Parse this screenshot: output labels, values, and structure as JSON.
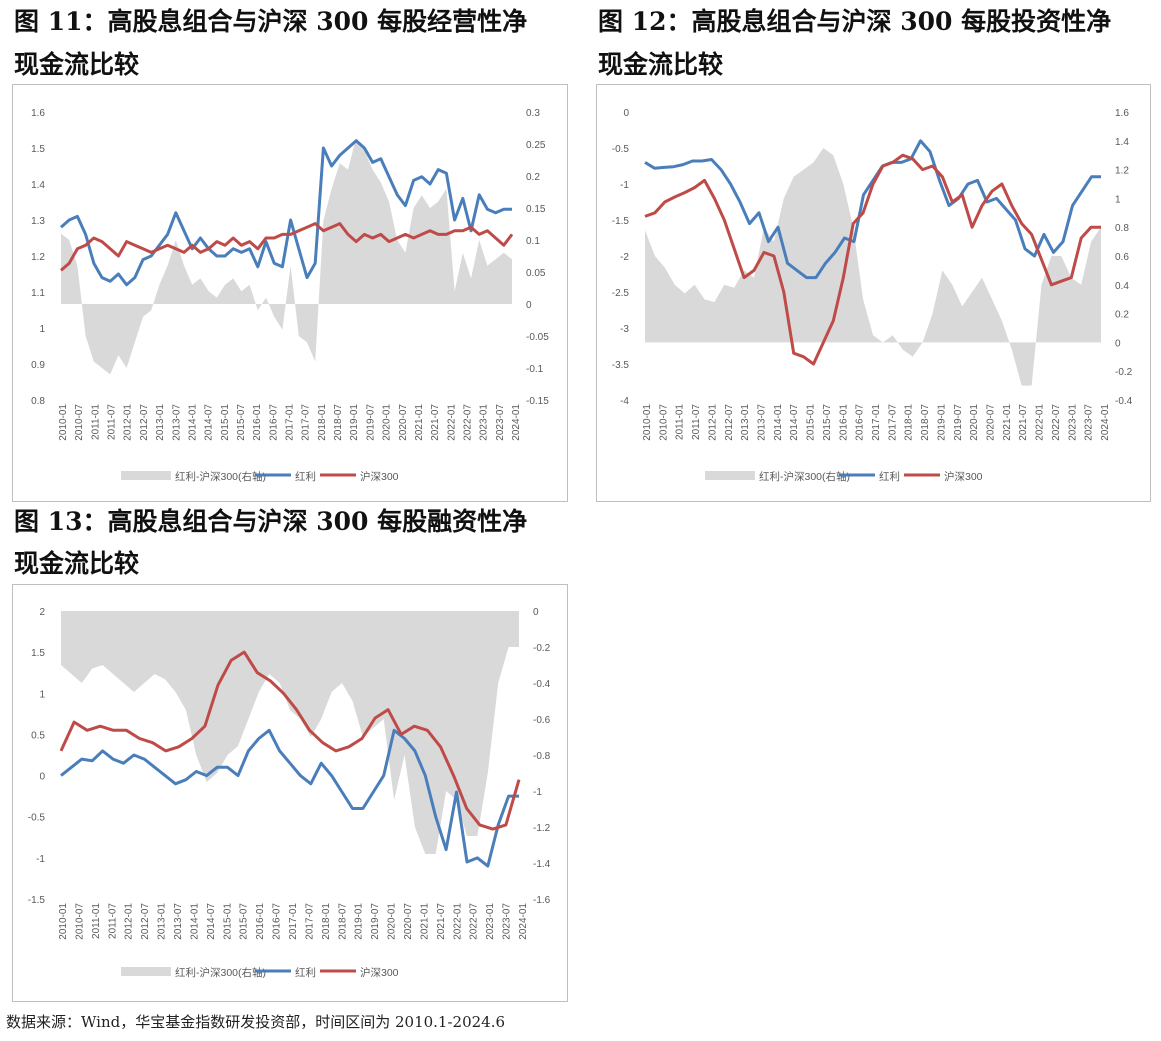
{
  "captions": {
    "fig11": [
      "图 11：高股息组合与沪深 300 每股经营性净",
      "现金流比较"
    ],
    "fig12": [
      "图 12：高股息组合与沪深 300 每股投资性净",
      "现金流比较"
    ],
    "fig13": [
      "图 13：高股息组合与沪深 300 每股融资性净",
      "现金流比较"
    ]
  },
  "source": "数据来源：Wind，华宝基金指数研发投资部，时间区间为 2010.1-2024.6",
  "colors": {
    "diff": "#d9d9d9",
    "dividend": "#4a7ebb",
    "hs300": "#be4b48",
    "axis_text": "#595959",
    "grid": "#d9d9d9"
  },
  "chart_data": [
    {
      "id": "fig11",
      "type": "line",
      "title": "高股息组合与沪深 300 每股经营性净现金流比较",
      "x_ticks": [
        "2010-01",
        "2010-07",
        "2011-01",
        "2011-07",
        "2012-01",
        "2012-07",
        "2013-01",
        "2013-07",
        "2014-01",
        "2014-07",
        "2015-01",
        "2015-07",
        "2016-01",
        "2016-07",
        "2017-01",
        "2017-07",
        "2018-01",
        "2018-07",
        "2019-01",
        "2019-07",
        "2020-01",
        "2020-07",
        "2021-01",
        "2021-07",
        "2022-01",
        "2022-07",
        "2023-01",
        "2023-07",
        "2024-01"
      ],
      "left_axis": {
        "min": 0.8,
        "max": 1.6,
        "step": 0.1,
        "ticks": [
          "0.8",
          "0.9",
          "1",
          "1.1",
          "1.2",
          "1.3",
          "1.4",
          "1.5",
          "1.6"
        ]
      },
      "right_axis": {
        "min": -0.15,
        "max": 0.3,
        "step": 0.05,
        "ticks": [
          "-0.15",
          "-0.1",
          "-0.05",
          "0",
          "0.05",
          "0.1",
          "0.15",
          "0.2",
          "0.25",
          "0.3"
        ]
      },
      "legend": [
        "红利-沪深300(右轴)",
        "红利",
        "沪深300"
      ],
      "series": [
        {
          "name": "红利",
          "axis": "left",
          "values": [
            1.28,
            1.3,
            1.31,
            1.26,
            1.18,
            1.14,
            1.13,
            1.15,
            1.12,
            1.14,
            1.19,
            1.2,
            1.23,
            1.26,
            1.32,
            1.27,
            1.22,
            1.25,
            1.22,
            1.2,
            1.2,
            1.22,
            1.21,
            1.22,
            1.17,
            1.24,
            1.18,
            1.17,
            1.3,
            1.22,
            1.14,
            1.18,
            1.5,
            1.45,
            1.48,
            1.5,
            1.52,
            1.5,
            1.46,
            1.47,
            1.42,
            1.37,
            1.34,
            1.41,
            1.42,
            1.4,
            1.44,
            1.43,
            1.3,
            1.36,
            1.27,
            1.37,
            1.33,
            1.32,
            1.33,
            1.33
          ]
        },
        {
          "name": "沪深300",
          "axis": "left",
          "values": [
            1.16,
            1.18,
            1.22,
            1.23,
            1.25,
            1.24,
            1.22,
            1.2,
            1.24,
            1.23,
            1.22,
            1.21,
            1.22,
            1.23,
            1.22,
            1.21,
            1.23,
            1.21,
            1.22,
            1.24,
            1.23,
            1.25,
            1.23,
            1.24,
            1.22,
            1.25,
            1.25,
            1.26,
            1.26,
            1.27,
            1.28,
            1.29,
            1.27,
            1.28,
            1.29,
            1.26,
            1.24,
            1.26,
            1.25,
            1.26,
            1.24,
            1.25,
            1.26,
            1.25,
            1.26,
            1.27,
            1.26,
            1.26,
            1.27,
            1.27,
            1.28,
            1.26,
            1.27,
            1.25,
            1.23,
            1.26
          ]
        },
        {
          "name": "红利-沪深300(右轴)",
          "axis": "right",
          "values": [
            0.11,
            0.1,
            0.06,
            -0.05,
            -0.09,
            -0.1,
            -0.11,
            -0.08,
            -0.1,
            -0.06,
            -0.02,
            -0.01,
            0.03,
            0.06,
            0.1,
            0.06,
            0.03,
            0.04,
            0.02,
            0.01,
            0.03,
            0.04,
            0.02,
            0.03,
            -0.01,
            0.01,
            -0.02,
            -0.04,
            0.06,
            -0.05,
            -0.06,
            -0.09,
            0.13,
            0.18,
            0.22,
            0.21,
            0.26,
            0.24,
            0.21,
            0.19,
            0.16,
            0.1,
            0.08,
            0.15,
            0.17,
            0.15,
            0.16,
            0.18,
            0.02,
            0.08,
            0.04,
            0.1,
            0.06,
            0.07,
            0.08,
            0.07
          ]
        }
      ]
    },
    {
      "id": "fig12",
      "type": "line",
      "title": "高股息组合与沪深 300 每股投资性净现金流比较",
      "x_ticks": [
        "2010-01",
        "2010-07",
        "2011-01",
        "2011-07",
        "2012-01",
        "2012-07",
        "2013-01",
        "2013-07",
        "2014-01",
        "2014-07",
        "2015-01",
        "2015-07",
        "2016-01",
        "2016-07",
        "2017-01",
        "2017-07",
        "2018-01",
        "2018-07",
        "2019-01",
        "2019-07",
        "2020-01",
        "2020-07",
        "2021-01",
        "2021-07",
        "2022-01",
        "2022-07",
        "2023-01",
        "2023-07",
        "2024-01"
      ],
      "left_axis": {
        "min": -4,
        "max": 0,
        "step": 0.5,
        "ticks": [
          "-4",
          "-3.5",
          "-3",
          "-2.5",
          "-2",
          "-1.5",
          "-1",
          "-0.5",
          "0"
        ]
      },
      "right_axis": {
        "min": -0.4,
        "max": 1.6,
        "step": 0.2,
        "ticks": [
          "-0.4",
          "-0.2",
          "0",
          "0.2",
          "0.4",
          "0.6",
          "0.8",
          "1",
          "1.2",
          "1.4",
          "1.6"
        ]
      },
      "legend": [
        "红利-沪深300(右轴)",
        "红利",
        "沪深300"
      ],
      "series": [
        {
          "name": "红利",
          "axis": "left",
          "values": [
            -0.7,
            -0.78,
            -0.77,
            -0.76,
            -0.73,
            -0.68,
            -0.68,
            -0.66,
            -0.8,
            -1.0,
            -1.25,
            -1.55,
            -1.4,
            -1.8,
            -1.6,
            -2.1,
            -2.2,
            -2.3,
            -2.3,
            -2.1,
            -1.95,
            -1.75,
            -1.8,
            -1.15,
            -0.95,
            -0.75,
            -0.7,
            -0.7,
            -0.65,
            -0.4,
            -0.55,
            -0.95,
            -1.3,
            -1.2,
            -1.0,
            -0.95,
            -1.25,
            -1.2,
            -1.35,
            -1.5,
            -1.9,
            -2.0,
            -1.7,
            -1.95,
            -1.8,
            -1.3,
            -1.1,
            -0.9,
            -0.9
          ]
        },
        {
          "name": "沪深300",
          "axis": "left",
          "values": [
            -1.45,
            -1.4,
            -1.25,
            -1.18,
            -1.12,
            -1.05,
            -0.95,
            -1.2,
            -1.5,
            -1.9,
            -2.3,
            -2.2,
            -1.95,
            -2.0,
            -2.5,
            -3.35,
            -3.4,
            -3.5,
            -3.2,
            -2.9,
            -2.3,
            -1.55,
            -1.4,
            -1.0,
            -0.75,
            -0.7,
            -0.6,
            -0.65,
            -0.8,
            -0.75,
            -0.9,
            -1.25,
            -1.15,
            -1.6,
            -1.3,
            -1.1,
            -1.0,
            -1.3,
            -1.55,
            -1.7,
            -2.05,
            -2.4,
            -2.35,
            -2.3,
            -1.75,
            -1.6,
            -1.6
          ]
        },
        {
          "name": "红利-沪深300(右轴)",
          "axis": "right",
          "values": [
            0.78,
            0.6,
            0.52,
            0.4,
            0.34,
            0.4,
            0.3,
            0.28,
            0.4,
            0.38,
            0.5,
            0.45,
            0.8,
            0.7,
            1.0,
            1.15,
            1.2,
            1.25,
            1.35,
            1.3,
            1.1,
            0.8,
            0.3,
            0.05,
            0.0,
            0.05,
            -0.05,
            -0.1,
            0.0,
            0.2,
            0.5,
            0.4,
            0.25,
            0.35,
            0.45,
            0.3,
            0.15,
            -0.05,
            -0.3,
            -0.3,
            0.4,
            0.6,
            0.6,
            0.45,
            0.4,
            0.7,
            0.8
          ]
        }
      ]
    },
    {
      "id": "fig13",
      "type": "line",
      "title": "高股息组合与沪深 300 每股融资性净现金流比较",
      "x_ticks": [
        "2010-01",
        "2010-07",
        "2011-01",
        "2011-07",
        "2012-01",
        "2012-07",
        "2013-01",
        "2013-07",
        "2014-01",
        "2014-07",
        "2015-01",
        "2015-07",
        "2016-01",
        "2016-07",
        "2017-01",
        "2017-07",
        "2018-01",
        "2018-07",
        "2019-01",
        "2019-07",
        "2020-01",
        "2020-07",
        "2021-01",
        "2021-07",
        "2022-01",
        "2022-07",
        "2023-01",
        "2023-07",
        "2024-01"
      ],
      "left_axis": {
        "min": -1.5,
        "max": 2,
        "step": 0.5,
        "ticks": [
          "-1.5",
          "-1",
          "-0.5",
          "0",
          "0.5",
          "1",
          "1.5",
          "2"
        ]
      },
      "right_axis": {
        "min": -1.6,
        "max": 0,
        "step": 0.2,
        "ticks": [
          "-1.6",
          "-1.4",
          "-1.2",
          "-1",
          "-0.8",
          "-0.6",
          "-0.4",
          "-0.2",
          "0"
        ]
      },
      "legend": [
        "红利-沪深300(右轴)",
        "红利",
        "沪深300"
      ],
      "series": [
        {
          "name": "红利",
          "axis": "left",
          "values": [
            0.0,
            0.1,
            0.2,
            0.18,
            0.3,
            0.2,
            0.15,
            0.25,
            0.2,
            0.1,
            0.0,
            -0.1,
            -0.05,
            0.05,
            0.0,
            0.1,
            0.1,
            0.0,
            0.3,
            0.45,
            0.55,
            0.3,
            0.15,
            0.0,
            -0.1,
            0.15,
            0.0,
            -0.2,
            -0.4,
            -0.4,
            -0.2,
            0.0,
            0.55,
            0.45,
            0.3,
            0.0,
            -0.5,
            -0.9,
            -0.2,
            -1.05,
            -1.0,
            -1.1,
            -0.6,
            -0.25,
            -0.25
          ]
        },
        {
          "name": "沪深300",
          "axis": "left",
          "values": [
            0.3,
            0.65,
            0.55,
            0.6,
            0.55,
            0.55,
            0.45,
            0.4,
            0.3,
            0.35,
            0.45,
            0.6,
            1.1,
            1.4,
            1.5,
            1.25,
            1.15,
            1.0,
            0.8,
            0.55,
            0.4,
            0.3,
            0.35,
            0.45,
            0.7,
            0.8,
            0.5,
            0.6,
            0.55,
            0.35,
            0.0,
            -0.4,
            -0.6,
            -0.65,
            -0.6,
            -0.05
          ]
        },
        {
          "name": "红利-沪深300(右轴)",
          "axis": "right",
          "values": [
            -0.3,
            -0.35,
            -0.4,
            -0.32,
            -0.3,
            -0.35,
            -0.4,
            -0.45,
            -0.4,
            -0.35,
            -0.38,
            -0.45,
            -0.55,
            -0.8,
            -0.95,
            -0.9,
            -0.8,
            -0.75,
            -0.6,
            -0.45,
            -0.35,
            -0.4,
            -0.55,
            -0.6,
            -0.7,
            -0.6,
            -0.45,
            -0.4,
            -0.5,
            -0.7,
            -0.65,
            -0.6,
            -1.05,
            -0.8,
            -1.2,
            -1.35,
            -1.35,
            -1.0,
            -1.05,
            -1.25,
            -1.25,
            -0.9,
            -0.4,
            -0.2,
            -0.2
          ]
        }
      ]
    }
  ]
}
